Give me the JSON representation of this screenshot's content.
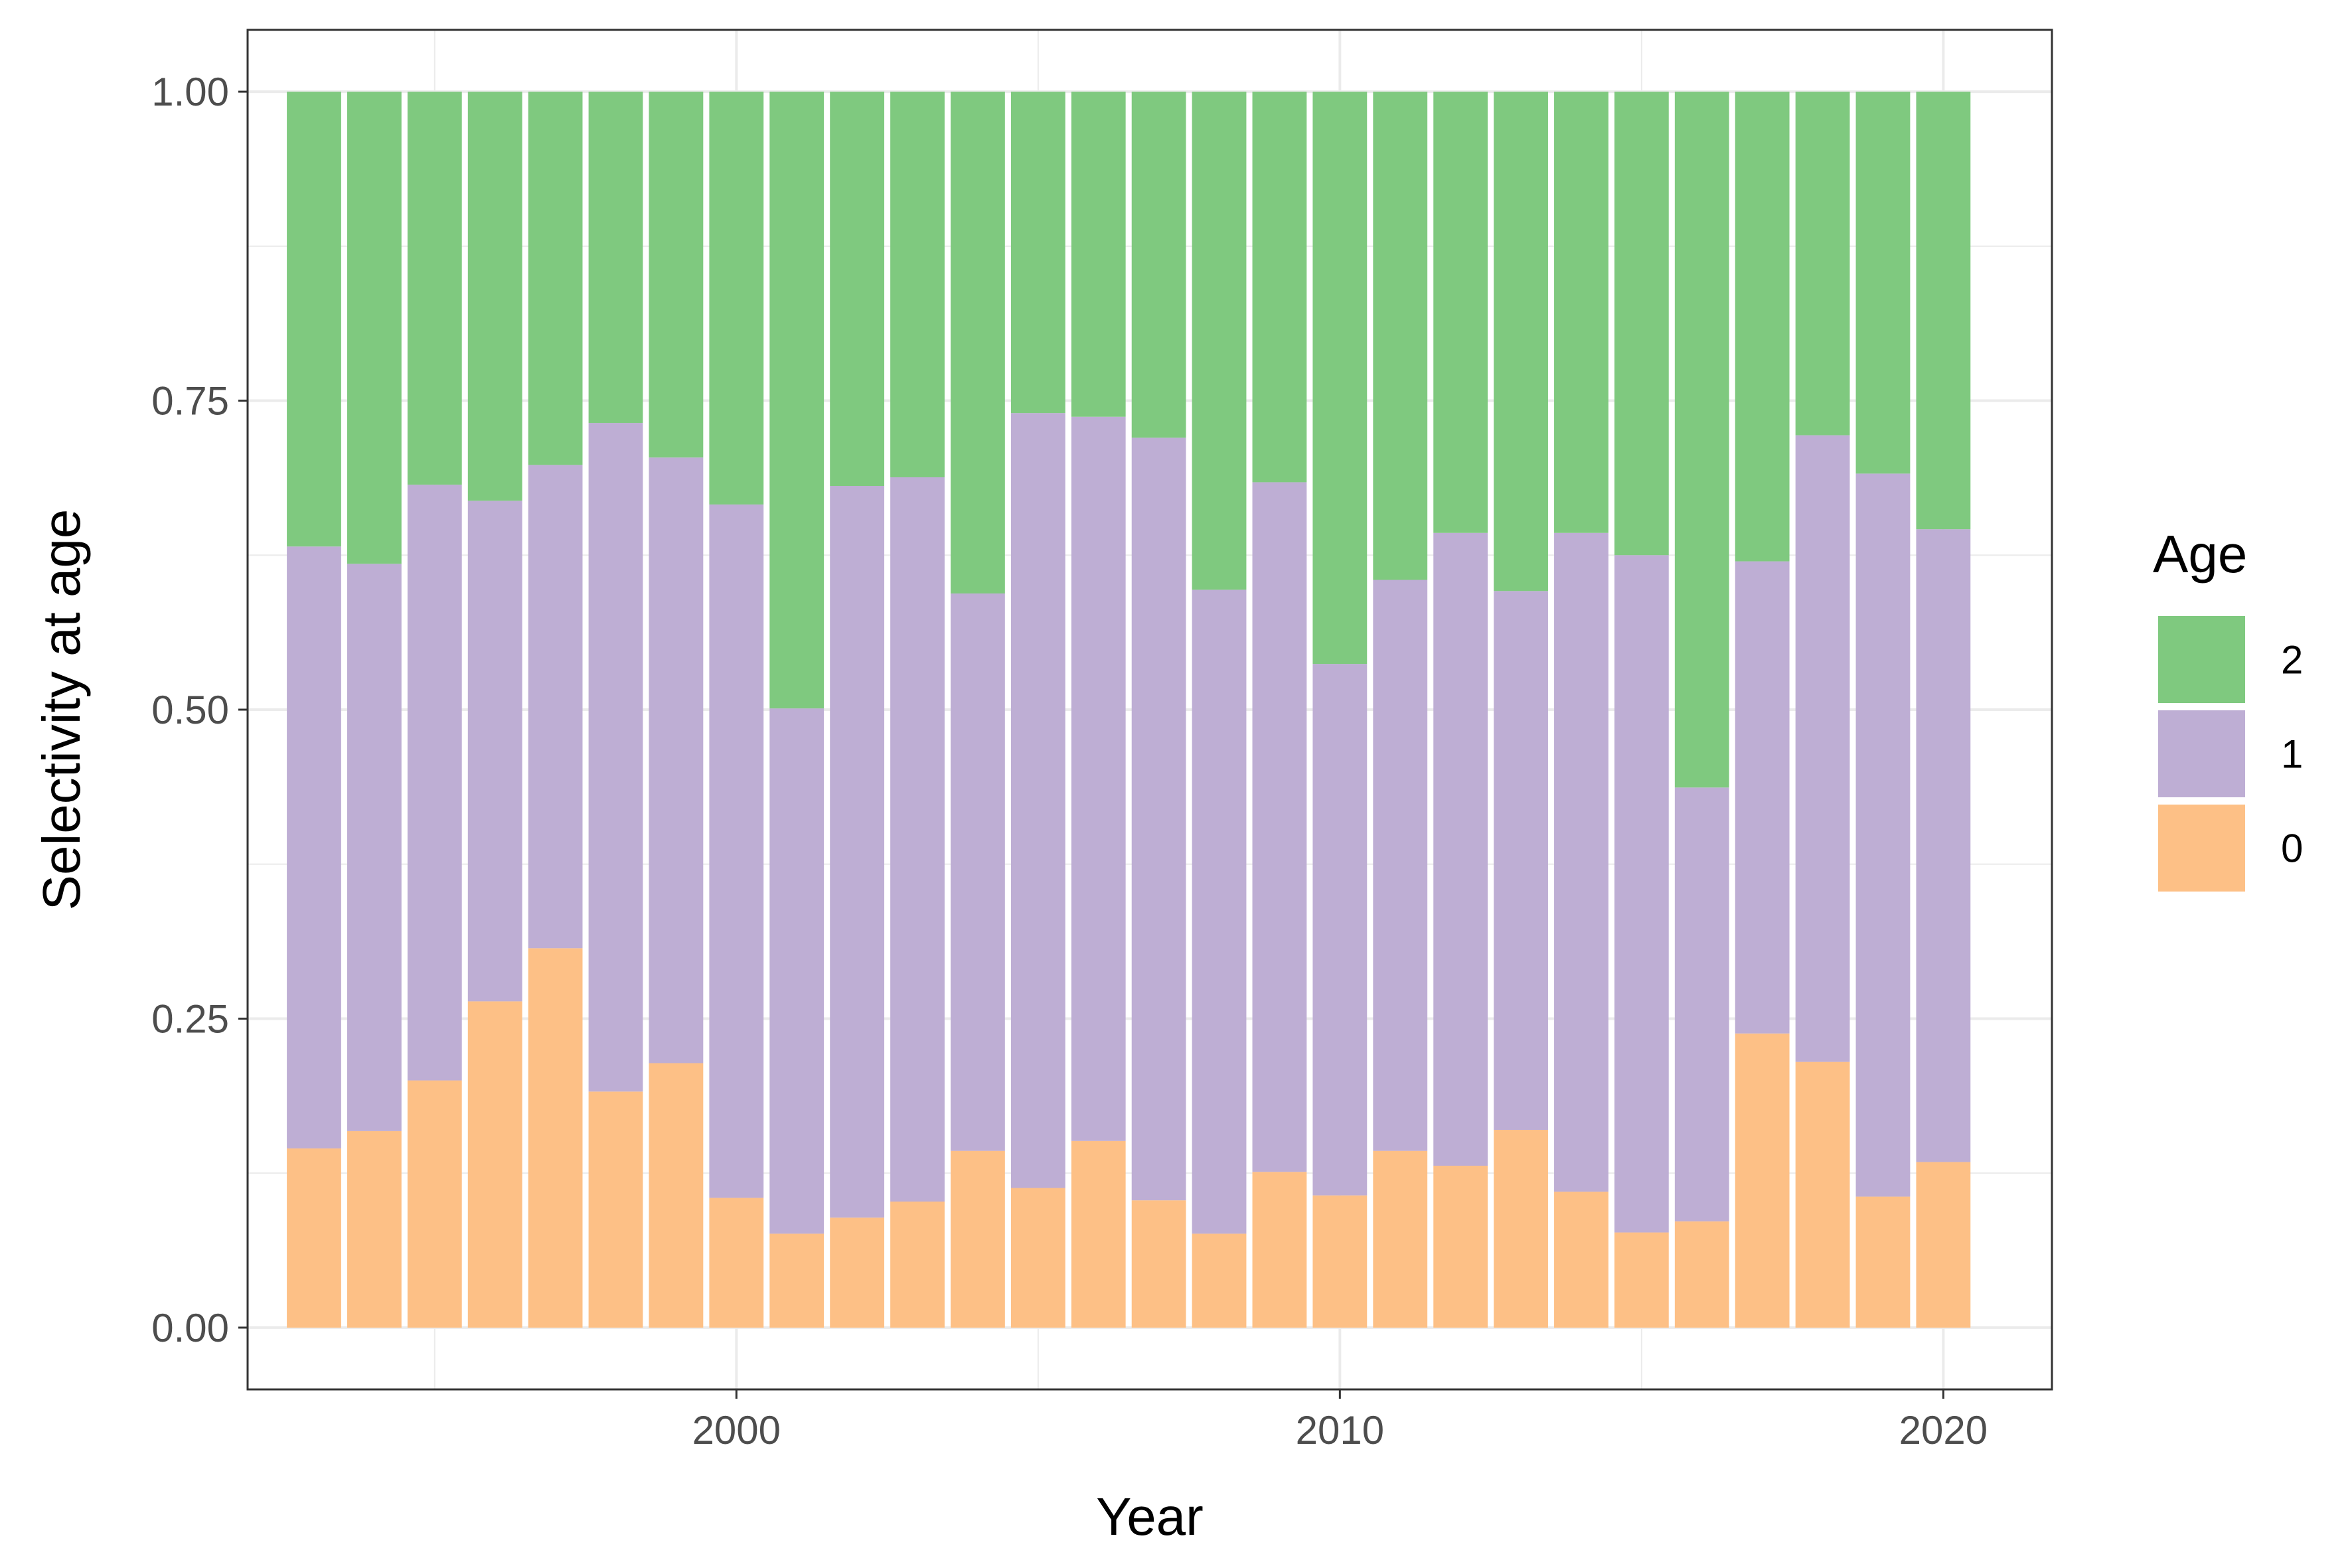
{
  "chart_data": {
    "type": "bar",
    "stacked": true,
    "xlabel": "Year",
    "ylabel": "Selectivity at age",
    "xlim": [
      1991.9,
      2021.8
    ],
    "ylim": [
      -0.05,
      1.05
    ],
    "x_ticks": [
      2000,
      2010,
      2020
    ],
    "x_tick_labels": [
      "2000",
      "2010",
      "2020"
    ],
    "y_ticks": [
      0,
      0.25,
      0.5,
      0.75,
      1
    ],
    "y_tick_labels": [
      "0.00",
      "0.25",
      "0.50",
      "0.75",
      "1.00"
    ],
    "grid": true,
    "legend": {
      "title": "Age",
      "placement": "right",
      "order": [
        "2",
        "1",
        "0"
      ]
    },
    "categories": [
      1993,
      1994,
      1995,
      1996,
      1997,
      1998,
      1999,
      2000,
      2001,
      2002,
      2003,
      2004,
      2005,
      2006,
      2007,
      2008,
      2009,
      2010,
      2011,
      2012,
      2013,
      2014,
      2015,
      2016,
      2017,
      2018,
      2019,
      2020
    ],
    "series": [
      {
        "name": "0",
        "color": "#FDC086",
        "values": [
          0.145,
          0.159,
          0.2,
          0.264,
          0.307,
          0.191,
          0.214,
          0.105,
          0.076,
          0.089,
          0.102,
          0.143,
          0.113,
          0.151,
          0.103,
          0.076,
          0.126,
          0.107,
          0.143,
          0.131,
          0.16,
          0.11,
          0.077,
          0.086,
          0.238,
          0.215,
          0.106,
          0.134
        ]
      },
      {
        "name": "1",
        "color": "#BEAED4",
        "values": [
          0.487,
          0.459,
          0.482,
          0.405,
          0.391,
          0.541,
          0.49,
          0.561,
          0.425,
          0.592,
          0.586,
          0.451,
          0.627,
          0.586,
          0.617,
          0.521,
          0.558,
          0.43,
          0.462,
          0.512,
          0.436,
          0.533,
          0.548,
          0.351,
          0.382,
          0.507,
          0.585,
          0.512
        ]
      },
      {
        "name": "2",
        "color": "#7FC97F",
        "values": [
          0.368,
          0.382,
          0.318,
          0.331,
          0.302,
          0.268,
          0.296,
          0.334,
          0.499,
          0.319,
          0.312,
          0.406,
          0.26,
          0.263,
          0.28,
          0.403,
          0.316,
          0.463,
          0.395,
          0.357,
          0.404,
          0.357,
          0.375,
          0.563,
          0.38,
          0.278,
          0.309,
          0.354
        ]
      }
    ]
  }
}
